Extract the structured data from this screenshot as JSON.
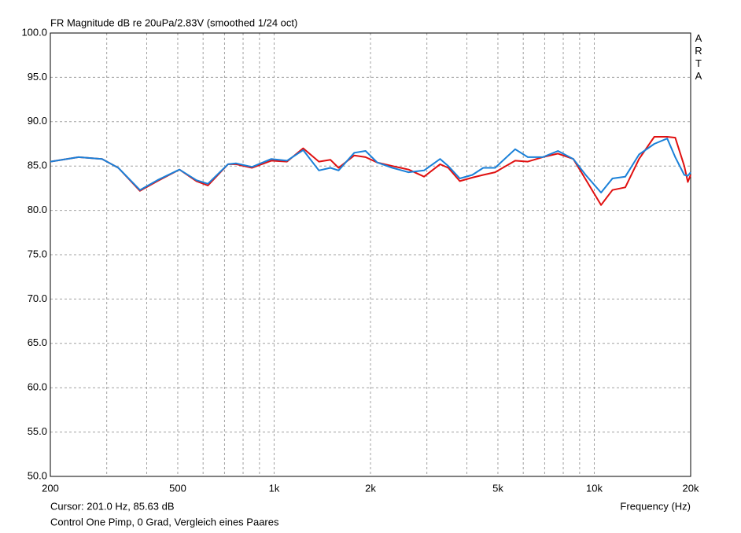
{
  "chart_data": {
    "type": "line",
    "title": "FR Magnitude dB re 20uPa/2.83V (smoothed 1/24 oct)",
    "side_label": "ARTA",
    "xlabel": "Frequency (Hz)",
    "cursor": "Cursor: 201.0 Hz, 85.63 dB",
    "footer": "Control One Pimp, 0 Grad, Vergleich eines Paares",
    "xscale": "log",
    "xlim": [
      200,
      20000
    ],
    "xticks": [
      200,
      500,
      {
        "value": 1000,
        "label": "1k"
      },
      {
        "value": 2000,
        "label": "2k"
      },
      {
        "value": 5000,
        "label": "5k"
      },
      {
        "value": 10000,
        "label": "10k"
      },
      {
        "value": 20000,
        "label": "20k"
      }
    ],
    "xgrid_minor": [
      300,
      400,
      600,
      700,
      800,
      900,
      3000,
      4000,
      6000,
      7000,
      8000,
      9000
    ],
    "ylim": [
      50,
      100
    ],
    "yticks": [
      {
        "value": 50,
        "label": "50.0"
      },
      {
        "value": 55,
        "label": "55.0"
      },
      {
        "value": 60,
        "label": "60.0"
      },
      {
        "value": 65,
        "label": "65.0"
      },
      {
        "value": 70,
        "label": "70.0"
      },
      {
        "value": 75,
        "label": "75.0"
      },
      {
        "value": 80,
        "label": "80.0"
      },
      {
        "value": 85,
        "label": "85.0"
      },
      {
        "value": 90,
        "label": "90.0"
      },
      {
        "value": 95,
        "label": "95.0"
      },
      {
        "value": 100,
        "label": "100.0"
      }
    ],
    "grid": true,
    "x": [
      200,
      245,
      290,
      326,
      381,
      432,
      506,
      572,
      621,
      718,
      761,
      853,
      980,
      1097,
      1232,
      1380,
      1500,
      1590,
      1780,
      1930,
      2100,
      2340,
      2630,
      2940,
      3300,
      3500,
      3800,
      4160,
      4500,
      4900,
      5660,
      6200,
      6900,
      7700,
      8600,
      9400,
      10500,
      11400,
      12500,
      13800,
      15400,
      16900,
      17900,
      19100,
      19600,
      20000
    ],
    "series": [
      {
        "color": "#e01010",
        "values": [
          85.5,
          86.0,
          85.8,
          84.8,
          82.2,
          83.3,
          84.6,
          83.3,
          82.8,
          85.2,
          85.2,
          84.8,
          85.6,
          85.5,
          87.0,
          85.5,
          85.7,
          84.8,
          86.2,
          86.0,
          85.4,
          85.0,
          84.6,
          83.8,
          85.2,
          84.8,
          83.3,
          83.7,
          84.0,
          84.3,
          85.6,
          85.5,
          86.0,
          86.4,
          85.8,
          83.5,
          80.6,
          82.3,
          82.6,
          85.8,
          88.3,
          88.3,
          88.2,
          85.0,
          83.2,
          84.0
        ]
      },
      {
        "color": "#1a80d8",
        "values": [
          85.5,
          86.0,
          85.8,
          84.8,
          82.3,
          83.4,
          84.6,
          83.4,
          83.0,
          85.2,
          85.3,
          84.9,
          85.8,
          85.6,
          86.8,
          84.5,
          84.8,
          84.5,
          86.5,
          86.7,
          85.4,
          84.8,
          84.3,
          84.5,
          85.8,
          85.0,
          83.6,
          84.0,
          84.8,
          84.8,
          86.9,
          86.0,
          86.0,
          86.7,
          85.8,
          84.0,
          82.0,
          83.6,
          83.8,
          86.3,
          87.5,
          88.1,
          86.0,
          84.0,
          83.9,
          84.3
        ]
      }
    ]
  }
}
